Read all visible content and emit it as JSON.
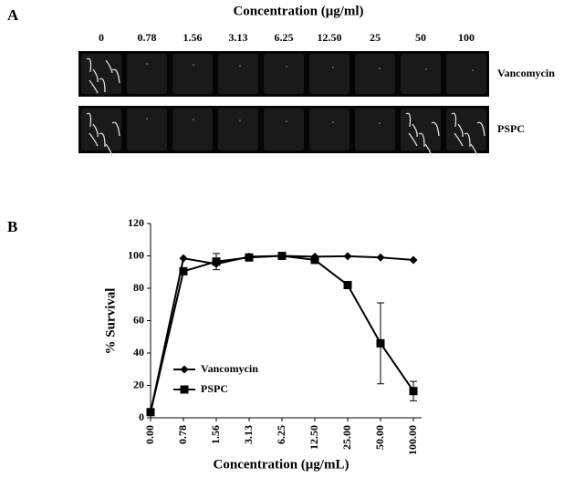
{
  "panel_a": {
    "label": "A",
    "title": "Concentration (μg/ml)",
    "columns": [
      "0",
      "0.78",
      "1.56",
      "3.13",
      "6.25",
      "12.50",
      "25",
      "50",
      "100"
    ],
    "rows": [
      "Vancomycin",
      "PSPC"
    ]
  },
  "chart_data": {
    "type": "line",
    "panel_label": "B",
    "x_label": "Concentration (μg/mL)",
    "y_label": "% Survival",
    "categories": [
      "0.00",
      "0.78",
      "1.56",
      "3.13",
      "6.25",
      "12.50",
      "25.00",
      "50.00",
      "100.00"
    ],
    "series": [
      {
        "name": "Vancomycin",
        "color": "#000000",
        "marker": "diamond",
        "values": [
          3.5,
          98.5,
          95,
          99.5,
          100,
          99.5,
          99.8,
          99,
          97.5
        ],
        "errors": [
          null,
          null,
          null,
          null,
          null,
          null,
          null,
          null,
          null
        ]
      },
      {
        "name": "PSPC",
        "color": "#000000",
        "marker": "square",
        "values": [
          3.5,
          90.5,
          96.5,
          99,
          100,
          97.5,
          82,
          46,
          16.5
        ],
        "errors": [
          null,
          null,
          5,
          null,
          null,
          null,
          null,
          25,
          6
        ]
      }
    ],
    "ylim": [
      0,
      120
    ],
    "yticks": [
      0,
      20,
      40,
      60,
      80,
      100,
      120
    ],
    "legend": "lower left"
  }
}
